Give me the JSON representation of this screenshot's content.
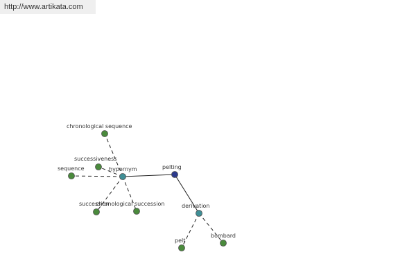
{
  "header": {
    "url": "http://www.artikata.com"
  },
  "colors": {
    "green_node": "#4a8a3c",
    "teal_node": "#3f8f96",
    "blue_node": "#2c3a8c"
  },
  "graph": {
    "nodes": [
      {
        "id": "chronological_sequence",
        "label": "chronological sequence",
        "color": "green"
      },
      {
        "id": "successiveness",
        "label": "successiveness",
        "color": "green"
      },
      {
        "id": "sequence",
        "label": "sequence",
        "color": "green"
      },
      {
        "id": "hypernym",
        "label": "hypernym",
        "color": "teal"
      },
      {
        "id": "pelting",
        "label": "pelting",
        "color": "blue"
      },
      {
        "id": "succession",
        "label": "succession",
        "color": "green"
      },
      {
        "id": "chronological_succession",
        "label": "chronological succession",
        "color": "green"
      },
      {
        "id": "derivation",
        "label": "derivation",
        "color": "teal"
      },
      {
        "id": "pelt",
        "label": "pelt",
        "color": "green"
      },
      {
        "id": "bombard",
        "label": "bombard",
        "color": "green"
      }
    ],
    "edges": [
      {
        "from": "pelting",
        "to": "hypernym",
        "style": "solid"
      },
      {
        "from": "pelting",
        "to": "derivation",
        "style": "solid"
      },
      {
        "from": "hypernym",
        "to": "chronological_sequence",
        "style": "dashed"
      },
      {
        "from": "hypernym",
        "to": "successiveness",
        "style": "dashed"
      },
      {
        "from": "hypernym",
        "to": "sequence",
        "style": "dashed"
      },
      {
        "from": "hypernym",
        "to": "succession",
        "style": "dashed"
      },
      {
        "from": "hypernym",
        "to": "chronological_succession",
        "style": "dashed"
      },
      {
        "from": "derivation",
        "to": "pelt",
        "style": "dashed"
      },
      {
        "from": "derivation",
        "to": "bombard",
        "style": "dashed"
      }
    ]
  }
}
